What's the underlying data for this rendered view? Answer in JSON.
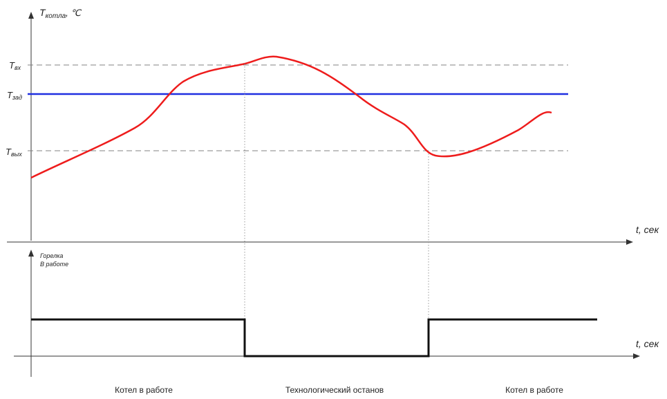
{
  "top_chart": {
    "y_axis_label_main": "T",
    "y_axis_label_sub": "котла",
    "y_axis_label_unit": ", ℃",
    "x_axis_label": "t, сек",
    "levels": [
      {
        "main": "T",
        "sub": "вх",
        "style": "dashed",
        "color": "#808080"
      },
      {
        "main": "T",
        "sub": "зад",
        "style": "solid",
        "color": "#1f2fe0"
      },
      {
        "main": "T",
        "sub": "вых",
        "style": "dashed",
        "color": "#808080"
      }
    ],
    "curve_color": "#ee1c1c"
  },
  "bottom_chart": {
    "y_axis_label_line1": "Горелка",
    "y_axis_label_line2": "В работе",
    "x_axis_label": "t, сек",
    "signal_color": "#111111"
  },
  "phases": [
    {
      "label": "Котел в работе"
    },
    {
      "label": "Технологический останов"
    },
    {
      "label": "Котел в работе"
    }
  ]
}
